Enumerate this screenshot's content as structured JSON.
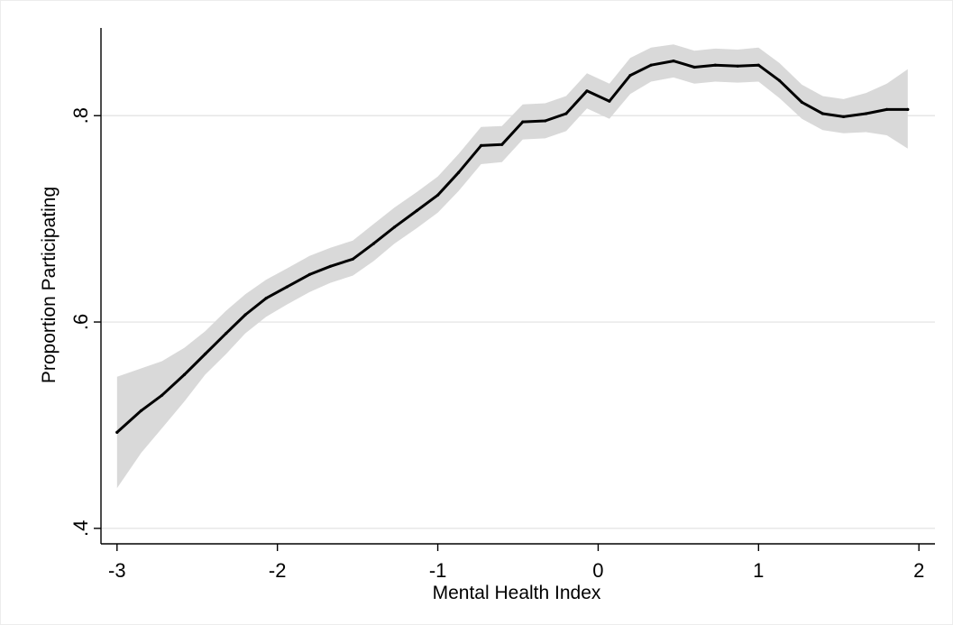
{
  "chart_data": {
    "type": "line",
    "title": "",
    "xlabel": "Mental Health Index",
    "ylabel": "Proportion Participating",
    "xlim": [
      -3.1,
      2.1
    ],
    "ylim": [
      0.385,
      0.885
    ],
    "x_ticks": [
      {
        "value": -3,
        "label": "-3"
      },
      {
        "value": -2,
        "label": "-2"
      },
      {
        "value": -1,
        "label": "-1"
      },
      {
        "value": 0,
        "label": "0"
      },
      {
        "value": 1,
        "label": "1"
      },
      {
        "value": 2,
        "label": "2"
      }
    ],
    "y_ticks": [
      {
        "value": 0.4,
        "label": ".4"
      },
      {
        "value": 0.6,
        "label": ".6"
      },
      {
        "value": 0.8,
        "label": ".8"
      }
    ],
    "grid": "horizontal",
    "legend": "none",
    "series": [
      {
        "x": [
          -3.0,
          -2.85,
          -2.72,
          -2.58,
          -2.45,
          -2.32,
          -2.2,
          -2.07,
          -1.94,
          -1.8,
          -1.67,
          -1.53,
          -1.4,
          -1.27,
          -1.13,
          -1.0,
          -0.87,
          -0.73,
          -0.6,
          -0.47,
          -0.33,
          -0.2,
          -0.07,
          0.07,
          0.2,
          0.33,
          0.47,
          0.6,
          0.73,
          0.87,
          1.0,
          1.13,
          1.27,
          1.4,
          1.53,
          1.67,
          1.8,
          1.93
        ],
        "y": [
          0.493,
          0.514,
          0.529,
          0.549,
          0.569,
          0.589,
          0.607,
          0.623,
          0.634,
          0.646,
          0.654,
          0.661,
          0.676,
          0.692,
          0.708,
          0.723,
          0.745,
          0.771,
          0.772,
          0.794,
          0.795,
          0.802,
          0.824,
          0.814,
          0.839,
          0.849,
          0.853,
          0.847,
          0.849,
          0.848,
          0.849,
          0.834,
          0.813,
          0.802,
          0.799,
          0.802,
          0.806,
          0.806
        ],
        "ci_lower": [
          0.439,
          0.473,
          0.497,
          0.523,
          0.549,
          0.569,
          0.589,
          0.605,
          0.617,
          0.629,
          0.638,
          0.645,
          0.659,
          0.676,
          0.691,
          0.706,
          0.727,
          0.753,
          0.755,
          0.777,
          0.778,
          0.785,
          0.807,
          0.797,
          0.821,
          0.833,
          0.837,
          0.831,
          0.833,
          0.832,
          0.833,
          0.817,
          0.797,
          0.786,
          0.783,
          0.784,
          0.781,
          0.768
        ],
        "ci_upper": [
          0.547,
          0.555,
          0.562,
          0.575,
          0.591,
          0.611,
          0.627,
          0.641,
          0.652,
          0.664,
          0.672,
          0.679,
          0.695,
          0.711,
          0.726,
          0.741,
          0.763,
          0.789,
          0.79,
          0.811,
          0.812,
          0.819,
          0.841,
          0.831,
          0.856,
          0.866,
          0.869,
          0.863,
          0.865,
          0.864,
          0.866,
          0.851,
          0.83,
          0.819,
          0.816,
          0.822,
          0.831,
          0.845
        ]
      }
    ],
    "colors": {
      "line": "#000000",
      "ci_band": "#d9d9d9",
      "grid": "#e6e6e6",
      "axis": "#000000"
    }
  }
}
